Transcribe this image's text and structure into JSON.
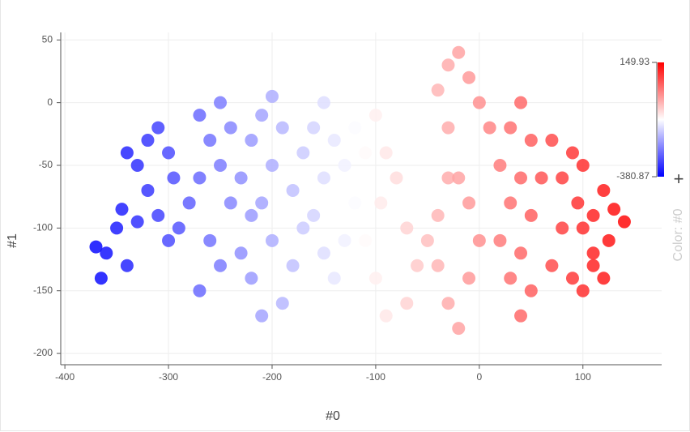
{
  "chart_data": {
    "type": "scatter",
    "x_label": "#0",
    "y_label": "#1",
    "xlim": [
      -404,
      176
    ],
    "ylim": [
      -209,
      56
    ],
    "xticks": [
      -400,
      -300,
      -200,
      -100,
      0,
      100
    ],
    "yticks": [
      -200,
      -150,
      -100,
      -50,
      0,
      50
    ],
    "grid": true,
    "color_label": "Color: #0",
    "colorscale": [
      "#0000ff",
      "#ffffff",
      "#ff0000"
    ],
    "clim": [
      -380.87,
      149.93
    ],
    "series": [
      {
        "name": "#1",
        "x": [
          -370,
          -365,
          -360,
          -350,
          -340,
          -345,
          -330,
          -320,
          -330,
          -340,
          -320,
          -310,
          -300,
          -295,
          -310,
          -300,
          -290,
          -280,
          -270,
          -260,
          -270,
          -250,
          -240,
          -250,
          -240,
          -260,
          -250,
          -270,
          -230,
          -220,
          -230,
          -220,
          -210,
          -200,
          -190,
          -200,
          -210,
          -200,
          -220,
          -210,
          -190,
          -180,
          -170,
          -180,
          -170,
          -160,
          -150,
          -140,
          -150,
          -160,
          -150,
          -140,
          -130,
          -120,
          -130,
          -120,
          -100,
          -110,
          -90,
          -80,
          -95,
          -110,
          -100,
          -90,
          -70,
          -60,
          -70,
          -50,
          -40,
          -30,
          -40,
          -30,
          -20,
          -10,
          0,
          -10,
          -20,
          -30,
          -40,
          -30,
          -20,
          -10,
          0,
          10,
          20,
          30,
          20,
          30,
          40,
          50,
          40,
          50,
          40,
          30,
          40,
          50,
          60,
          70,
          80,
          90,
          100,
          95,
          110,
          120,
          130,
          140,
          125,
          110,
          100,
          80,
          70,
          90,
          110,
          100,
          120
        ],
        "y": [
          -115,
          -140,
          -120,
          -100,
          -130,
          -85,
          -95,
          -70,
          -50,
          -40,
          -30,
          -20,
          -40,
          -60,
          -90,
          -110,
          -100,
          -80,
          -60,
          -30,
          -10,
          0,
          -20,
          -50,
          -80,
          -110,
          -130,
          -150,
          -120,
          -90,
          -60,
          -30,
          -10,
          5,
          -20,
          -50,
          -80,
          -110,
          -140,
          -170,
          -160,
          -130,
          -100,
          -70,
          -40,
          -20,
          0,
          -30,
          -60,
          -90,
          -120,
          -140,
          -110,
          -80,
          -50,
          -20,
          -10,
          -40,
          -40,
          -60,
          -80,
          -110,
          -140,
          -170,
          -160,
          -130,
          -100,
          -110,
          -90,
          -60,
          -130,
          -160,
          -180,
          -140,
          -110,
          -80,
          -60,
          -20,
          10,
          30,
          40,
          20,
          0,
          -20,
          -50,
          -80,
          -110,
          -140,
          -170,
          -150,
          -120,
          -90,
          -60,
          -20,
          0,
          -30,
          -60,
          -30,
          -60,
          -40,
          -50,
          -80,
          -90,
          -70,
          -85,
          -95,
          -110,
          -120,
          -100,
          -100,
          -130,
          -140,
          -130,
          -150,
          -140
        ]
      }
    ]
  }
}
